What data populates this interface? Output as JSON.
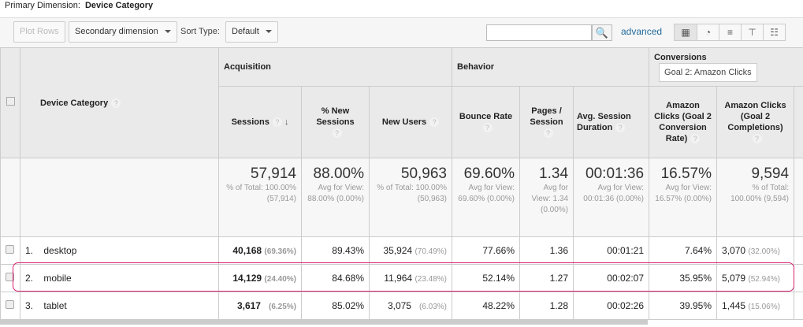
{
  "primary_dimension": {
    "label": "Primary Dimension:",
    "value": "Device Category"
  },
  "toolbar": {
    "plot_rows": "Plot Rows",
    "secondary_dimension": "Secondary dimension",
    "sort_type_label": "Sort Type:",
    "sort_type_value": "Default",
    "search_placeholder": "",
    "advanced": "advanced"
  },
  "view_icons": [
    "table-icon",
    "pie-icon",
    "bar-icon",
    "comparison-icon",
    "pivot-icon"
  ],
  "groups": {
    "acquisition": "Acquisition",
    "behavior": "Behavior",
    "conversions": "Conversions",
    "goal_select": "Goal 2: Amazon Clicks"
  },
  "columns": {
    "device": "Device Category",
    "sessions": "Sessions",
    "new_sessions": "% New Sessions",
    "new_users": "New Users",
    "bounce": "Bounce Rate",
    "pages": "Pages / Session",
    "duration": "Avg. Session Duration",
    "conv_rate": "Amazon Clicks (Goal 2 Conversion Rate)",
    "completions": "Amazon Clicks (Goal 2 Completions)"
  },
  "totals": {
    "sessions": {
      "v": "57,914",
      "s": "% of Total: 100.00% (57,914)"
    },
    "new_sessions": {
      "v": "88.00%",
      "s": "Avg for View: 88.00% (0.00%)"
    },
    "new_users": {
      "v": "50,963",
      "s": "% of Total: 100.00% (50,963)"
    },
    "bounce": {
      "v": "69.60%",
      "s": "Avg for View: 69.60% (0.00%)"
    },
    "pages": {
      "v": "1.34",
      "s": "Avg for View: 1.34 (0.00%)"
    },
    "duration": {
      "v": "00:01:36",
      "s": "Avg for View: 00:01:36 (0.00%)"
    },
    "conv_rate": {
      "v": "16.57%",
      "s": "Avg for View: 16.57% (0.00%)"
    },
    "completions": {
      "v": "9,594",
      "s": "% of Total: 100.00% (9,594)"
    }
  },
  "rows": [
    {
      "idx": "1.",
      "device": "desktop",
      "sessions": "40,168",
      "sessions_pct": "(69.36%)",
      "new_sessions": "89.43%",
      "new_users": "35,924",
      "new_users_pct": "(70.49%)",
      "bounce": "77.66%",
      "pages": "1.36",
      "duration": "00:01:21",
      "conv_rate": "7.64%",
      "completions": "3,070",
      "completions_pct": "(32.00%)"
    },
    {
      "idx": "2.",
      "device": "mobile",
      "sessions": "14,129",
      "sessions_pct": "(24.40%)",
      "new_sessions": "84.68%",
      "new_users": "11,964",
      "new_users_pct": "(23.48%)",
      "bounce": "52.14%",
      "pages": "1.27",
      "duration": "00:02:07",
      "conv_rate": "35.95%",
      "completions": "5,079",
      "completions_pct": "(52.94%)"
    },
    {
      "idx": "3.",
      "device": "tablet",
      "sessions": "3,617",
      "sessions_pct": "(6.25%)",
      "new_sessions": "85.02%",
      "new_users": "3,075",
      "new_users_pct": "(6.03%)",
      "bounce": "48.22%",
      "pages": "1.28",
      "duration": "00:02:26",
      "conv_rate": "39.95%",
      "completions": "1,445",
      "completions_pct": "(15.06%)"
    }
  ],
  "colors": {
    "highlight": "#d6206f",
    "link": "#236c9c"
  }
}
